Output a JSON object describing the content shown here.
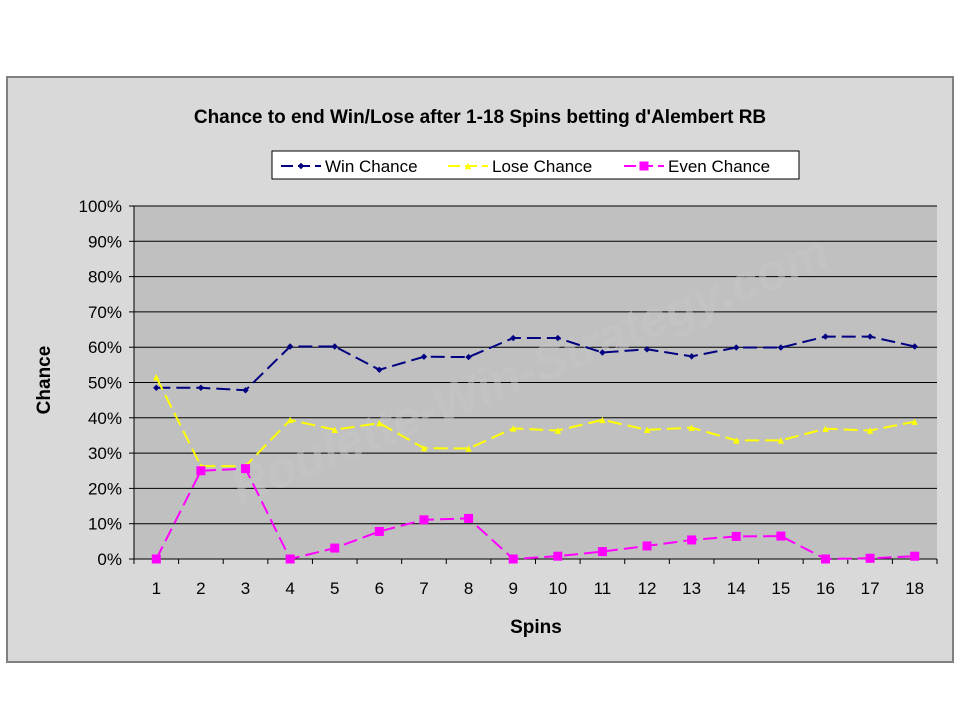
{
  "watermark": "Roulette-Win-Strategy.com",
  "chart_data": {
    "type": "line",
    "title": "Chance to end Win/Lose after 1-18 Spins betting d'Alembert RB",
    "xlabel": "Spins",
    "ylabel": "Chance",
    "categories": [
      "1",
      "2",
      "3",
      "4",
      "5",
      "6",
      "7",
      "8",
      "9",
      "10",
      "11",
      "12",
      "13",
      "14",
      "15",
      "16",
      "17",
      "18"
    ],
    "ylim": [
      0,
      100
    ],
    "yticks": [
      "0%",
      "10%",
      "20%",
      "30%",
      "40%",
      "50%",
      "60%",
      "70%",
      "80%",
      "90%",
      "100%"
    ],
    "grid": true,
    "legend_position": "top",
    "series": [
      {
        "name": "Win Chance",
        "color": "#000080",
        "marker": "diamond",
        "values": [
          48.5,
          48.5,
          47.8,
          60.2,
          60.2,
          53.6,
          57.3,
          57.2,
          62.6,
          62.6,
          58.5,
          59.4,
          57.4,
          59.9,
          59.9,
          63.0,
          63.0,
          60.2
        ]
      },
      {
        "name": "Lose Chance",
        "color": "#ffff00",
        "marker": "triangle",
        "values": [
          51.5,
          26.3,
          26.3,
          39.4,
          36.6,
          38.5,
          31.4,
          31.3,
          37.0,
          36.4,
          39.4,
          36.6,
          37.2,
          33.6,
          33.6,
          36.9,
          36.4,
          38.9
        ]
      },
      {
        "name": "Even Chance",
        "color": "#ff00ff",
        "marker": "square",
        "values": [
          0,
          25.0,
          25.6,
          0,
          3.1,
          7.8,
          11.1,
          11.5,
          0,
          0.8,
          2.1,
          3.7,
          5.4,
          6.4,
          6.5,
          0,
          0.2,
          0.8
        ]
      }
    ]
  }
}
